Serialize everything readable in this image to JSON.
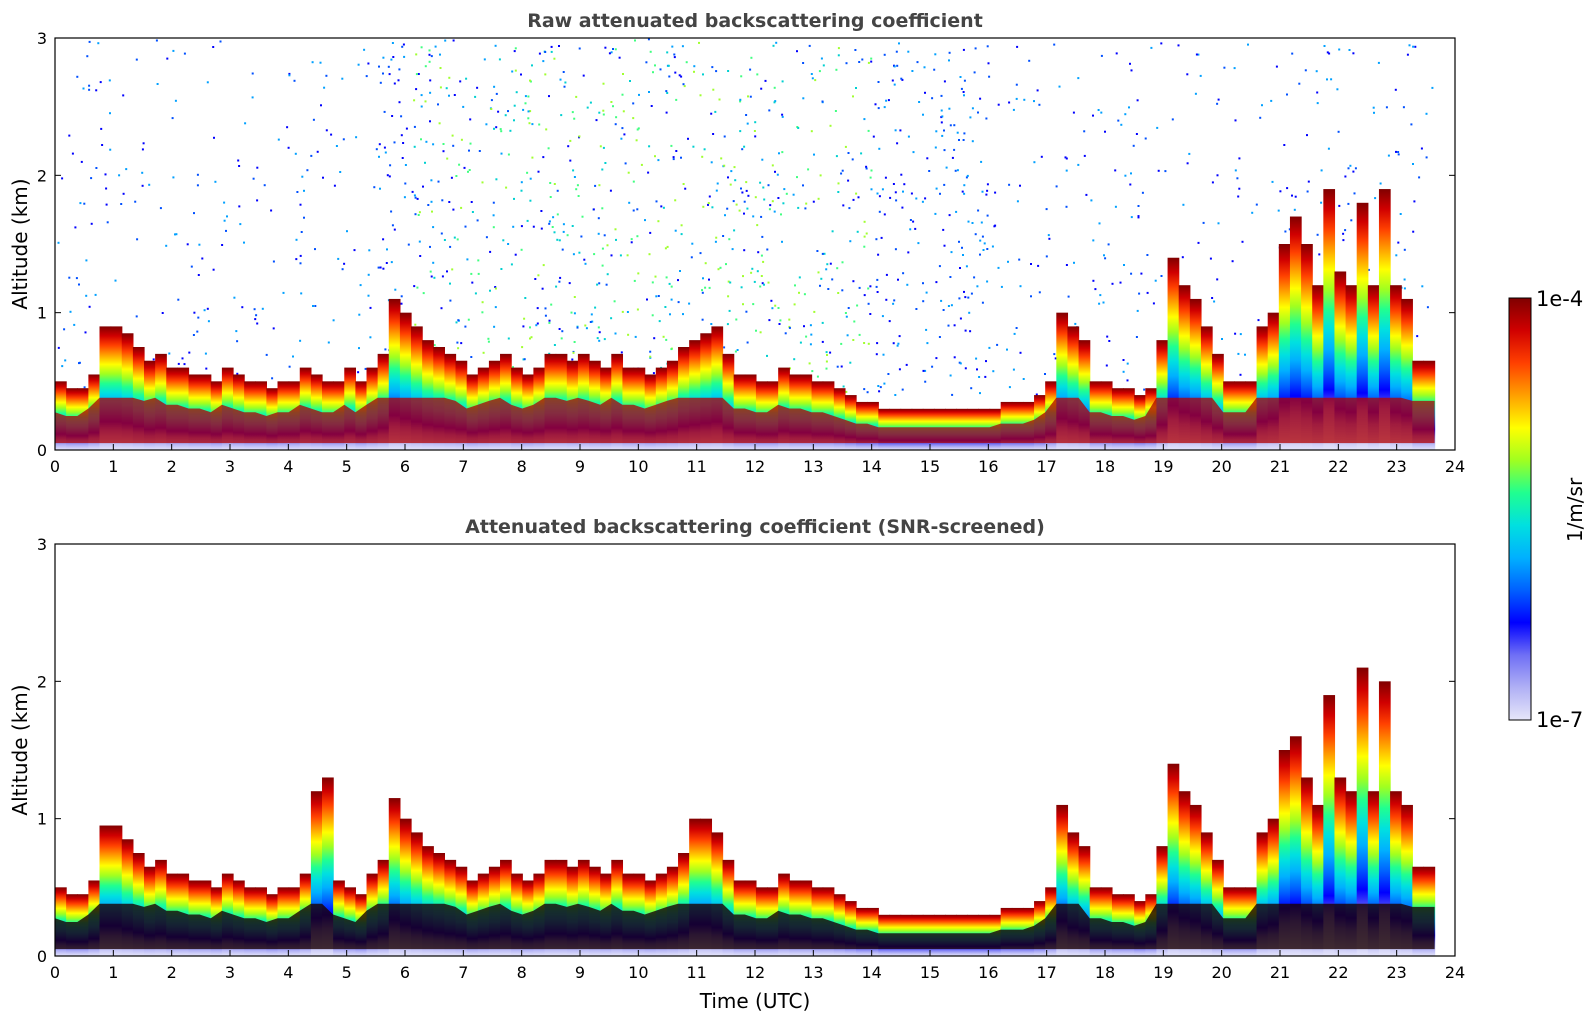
{
  "chart_data": [
    {
      "type": "heatmap",
      "title": "Raw attenuated backscattering coefficient",
      "xlabel": "",
      "ylabel": "Altitude (km)",
      "xlim": [
        0,
        24
      ],
      "ylim": [
        0,
        3
      ],
      "xticks": [
        "0",
        "1",
        "2",
        "3",
        "4",
        "5",
        "6",
        "7",
        "8",
        "9",
        "10",
        "11",
        "12",
        "13",
        "14",
        "15",
        "16",
        "17",
        "18",
        "19",
        "20",
        "21",
        "22",
        "23",
        "24"
      ],
      "yticks": [
        "0",
        "1",
        "2",
        "3"
      ],
      "boundary_layer_top_km": [
        0.5,
        0.45,
        0.45,
        0.55,
        0.9,
        0.9,
        0.85,
        0.75,
        0.65,
        0.7,
        0.6,
        0.6,
        0.55,
        0.55,
        0.5,
        0.6,
        0.55,
        0.5,
        0.5,
        0.45,
        0.5,
        0.5,
        0.6,
        0.55,
        0.5,
        0.5,
        0.6,
        0.5,
        0.6,
        0.7,
        1.1,
        1.0,
        0.9,
        0.8,
        0.75,
        0.7,
        0.65,
        0.55,
        0.6,
        0.65,
        0.7,
        0.6,
        0.55,
        0.6,
        0.7,
        0.7,
        0.65,
        0.7,
        0.65,
        0.6,
        0.7,
        0.6,
        0.6,
        0.55,
        0.6,
        0.65,
        0.75,
        0.8,
        0.85,
        0.9,
        0.7,
        0.55,
        0.55,
        0.5,
        0.5,
        0.6,
        0.55,
        0.55,
        0.5,
        0.5,
        0.45,
        0.4,
        0.35,
        0.35,
        0.3,
        0.3,
        0.3,
        0.3,
        0.3,
        0.3,
        0.3,
        0.3,
        0.3,
        0.3,
        0.3,
        0.35,
        0.35,
        0.35,
        0.4,
        0.5,
        1.0,
        0.9,
        0.8,
        0.5,
        0.5,
        0.45,
        0.45,
        0.4,
        0.45,
        0.8,
        1.4,
        1.2,
        1.1,
        0.9,
        0.7,
        0.5,
        0.5,
        0.5,
        0.9,
        1.0,
        1.5,
        1.7,
        1.5,
        1.2,
        1.9,
        1.3,
        1.2,
        1.8,
        1.2,
        1.9,
        1.2,
        1.1,
        0.65,
        0.65
      ]
    },
    {
      "type": "heatmap",
      "title": "Attenuated backscattering coefficient (SNR-screened)",
      "xlabel": "Time (UTC)",
      "ylabel": "Altitude (km)",
      "xlim": [
        0,
        24
      ],
      "ylim": [
        0,
        3
      ],
      "xticks": [
        "0",
        "1",
        "2",
        "3",
        "4",
        "5",
        "6",
        "7",
        "8",
        "9",
        "10",
        "11",
        "12",
        "13",
        "14",
        "15",
        "16",
        "17",
        "18",
        "19",
        "20",
        "21",
        "22",
        "23",
        "24"
      ],
      "yticks": [
        "0",
        "1",
        "2",
        "3"
      ],
      "boundary_layer_top_km": [
        0.5,
        0.45,
        0.45,
        0.55,
        0.95,
        0.95,
        0.85,
        0.75,
        0.65,
        0.7,
        0.6,
        0.6,
        0.55,
        0.55,
        0.5,
        0.6,
        0.55,
        0.5,
        0.5,
        0.45,
        0.5,
        0.5,
        0.6,
        1.2,
        1.3,
        0.55,
        0.5,
        0.45,
        0.6,
        0.7,
        1.15,
        1.0,
        0.9,
        0.8,
        0.75,
        0.7,
        0.65,
        0.55,
        0.6,
        0.65,
        0.7,
        0.6,
        0.55,
        0.6,
        0.7,
        0.7,
        0.65,
        0.7,
        0.65,
        0.6,
        0.7,
        0.6,
        0.6,
        0.55,
        0.6,
        0.65,
        0.75,
        1.0,
        1.0,
        0.9,
        0.7,
        0.55,
        0.55,
        0.5,
        0.5,
        0.6,
        0.55,
        0.55,
        0.5,
        0.5,
        0.45,
        0.4,
        0.35,
        0.35,
        0.3,
        0.3,
        0.3,
        0.3,
        0.3,
        0.3,
        0.3,
        0.3,
        0.3,
        0.3,
        0.3,
        0.35,
        0.35,
        0.35,
        0.4,
        0.5,
        1.1,
        0.9,
        0.8,
        0.5,
        0.5,
        0.45,
        0.45,
        0.4,
        0.45,
        0.8,
        1.4,
        1.2,
        1.1,
        0.9,
        0.7,
        0.5,
        0.5,
        0.5,
        0.9,
        1.0,
        1.5,
        1.6,
        1.3,
        1.1,
        1.9,
        1.3,
        1.2,
        2.1,
        1.2,
        2.0,
        1.2,
        1.1,
        0.65,
        0.65
      ]
    }
  ],
  "colorbar": {
    "label": "1/m/sr",
    "max_label": "1e-4",
    "min_label": "1e-7",
    "colors": [
      "#e6e6fa",
      "#b0b0f5",
      "#6f6ff5",
      "#0000ff",
      "#0060ff",
      "#00b0ff",
      "#00e0e0",
      "#20ff90",
      "#a0ff20",
      "#ffff00",
      "#ffa000",
      "#ff4000",
      "#d00000",
      "#800000"
    ]
  }
}
